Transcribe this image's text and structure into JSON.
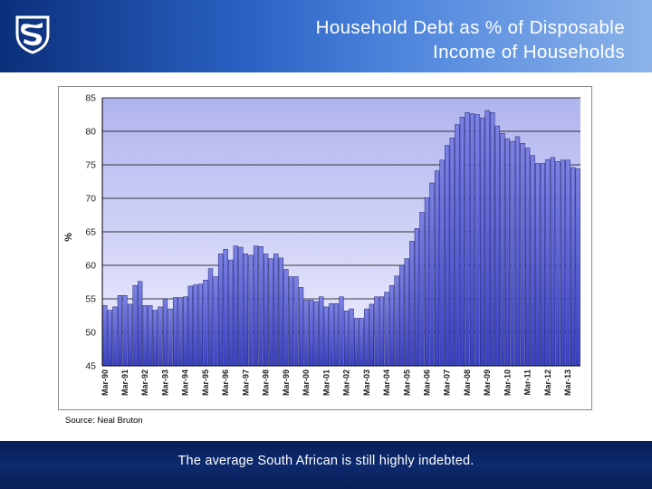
{
  "header": {
    "title_line1": "Household Debt as % of Disposable",
    "title_line2": "Income of Households"
  },
  "source_note": "Source: Neal Bruton",
  "footer": {
    "tagline": "The average South African is still highly indebted."
  },
  "chart_data": {
    "type": "bar",
    "title": "",
    "xlabel": "",
    "ylabel": "%",
    "ylim": [
      45,
      85
    ],
    "yticks": [
      45,
      50,
      55,
      60,
      65,
      70,
      75,
      80,
      85
    ],
    "grid": true,
    "colors": {
      "plot_bg_top": "#b0b4ee",
      "plot_bg_bottom": "#f0f0ff",
      "bar_top": "#7c82e4",
      "bar_bottom": "#3a41c0",
      "bar_edge": "#1c1f6c"
    },
    "tick_labels": [
      "Mar-90",
      "Mar-91",
      "Mar-92",
      "Mar-93",
      "Mar-94",
      "Mar-95",
      "Mar-96",
      "Mar-97",
      "Mar-98",
      "Mar-99",
      "Mar-00",
      "Mar-01",
      "Mar-02",
      "Mar-03",
      "Mar-04",
      "Mar-05",
      "Mar-06",
      "Mar-07",
      "Mar-08",
      "Mar-09",
      "Mar-10",
      "Mar-11",
      "Mar-12",
      "Mar-13"
    ],
    "quarters_per_label": 4,
    "series": [
      {
        "values": [
          54.0,
          53.3,
          53.8,
          55.5,
          55.5,
          54.2,
          57.0,
          57.6,
          54.0,
          54.0,
          53.3,
          53.8,
          55.0,
          53.5,
          55.2,
          55.2,
          55.3,
          56.9,
          57.1,
          57.2,
          57.8,
          59.5,
          58.3,
          61.7,
          62.4,
          60.8,
          62.9,
          62.7,
          61.7,
          61.5,
          62.9,
          62.8,
          61.7,
          61.0,
          61.7,
          61.1,
          59.4,
          58.3,
          58.3,
          56.7,
          54.8,
          54.8,
          54.6,
          55.3,
          53.8,
          54.3,
          54.3,
          55.3,
          53.2,
          53.5,
          52.1,
          52.1,
          53.5,
          54.2,
          55.3,
          55.3,
          56.0,
          57.0,
          58.4,
          60.0,
          61.0,
          63.6,
          65.5,
          67.9,
          70.1,
          72.3,
          74.1,
          75.7,
          77.9,
          79.0,
          81.0,
          82.1,
          82.8,
          82.6,
          82.5,
          82.0,
          83.1,
          82.8,
          80.8,
          79.7,
          78.9,
          78.5,
          79.2,
          78.2,
          77.5,
          76.4,
          75.2,
          75.2,
          75.8,
          76.1,
          75.5,
          75.7,
          75.7,
          74.6,
          74.4
        ]
      }
    ]
  }
}
